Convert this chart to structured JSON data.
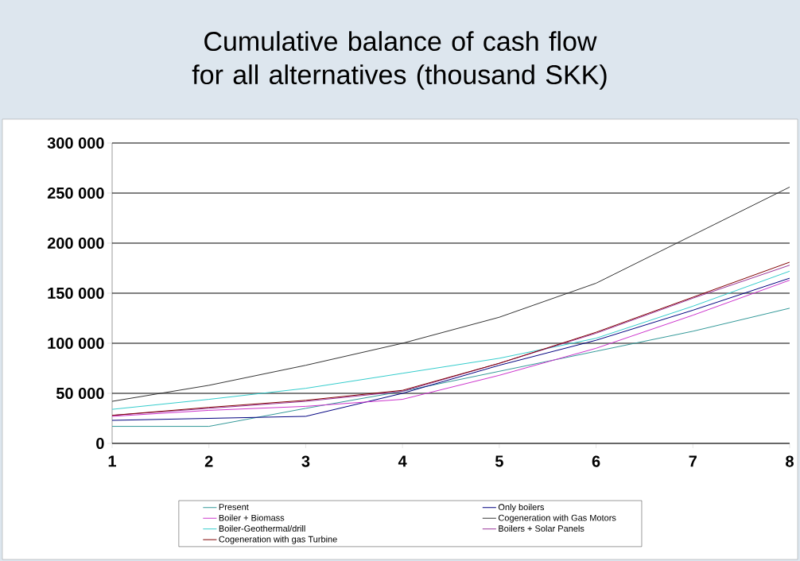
{
  "chart_data": {
    "type": "line",
    "title": "Cumulative balance of cash flow for all alternatives (thousand SKK)",
    "x": [
      1,
      2,
      3,
      4,
      5,
      6,
      7,
      8
    ],
    "series": [
      {
        "name": "Present",
        "color": "#339999",
        "values": [
          17000,
          17000,
          35000,
          52000,
          72000,
          92000,
          112000,
          135000
        ]
      },
      {
        "name": "Only boilers",
        "color": "#000080",
        "values": [
          23000,
          25000,
          27000,
          50000,
          78000,
          103000,
          133000,
          165000
        ]
      },
      {
        "name": "Boiler + Biomass",
        "color": "#cc33cc",
        "values": [
          27000,
          33000,
          37000,
          44000,
          68000,
          95000,
          128000,
          163000
        ]
      },
      {
        "name": "Cogeneration with Gas Motors",
        "color": "#333333",
        "values": [
          42000,
          58000,
          78000,
          100000,
          126000,
          160000,
          208000,
          256000
        ]
      },
      {
        "name": "Boiler-Geothermal/drill",
        "color": "#33cccc",
        "values": [
          34000,
          44000,
          55000,
          70000,
          85000,
          105000,
          137000,
          172000
        ]
      },
      {
        "name": "Boilers + Solar Panels",
        "color": "#993399",
        "values": [
          28000,
          35000,
          42000,
          52000,
          80000,
          110000,
          145000,
          178000
        ]
      },
      {
        "name": "Cogeneration with gas Turbine",
        "color": "#800000",
        "values": [
          28000,
          36000,
          43000,
          53000,
          80000,
          111000,
          146000,
          181000
        ]
      }
    ],
    "xlim": [
      1,
      8
    ],
    "xticks": [
      1,
      2,
      3,
      4,
      5,
      6,
      7,
      8
    ],
    "ylim": [
      0,
      300000
    ],
    "yticks": [
      {
        "value": 0,
        "label": "0"
      },
      {
        "value": 50000,
        "label": "50 000"
      },
      {
        "value": 100000,
        "label": "100 000"
      },
      {
        "value": 150000,
        "label": "150 000"
      },
      {
        "value": 200000,
        "label": "200 000"
      },
      {
        "value": 250000,
        "label": "250 000"
      },
      {
        "value": 300000,
        "label": "300 000"
      }
    ],
    "grid": "y",
    "legend": "bottom",
    "marker": "none",
    "line_style": "solid"
  }
}
